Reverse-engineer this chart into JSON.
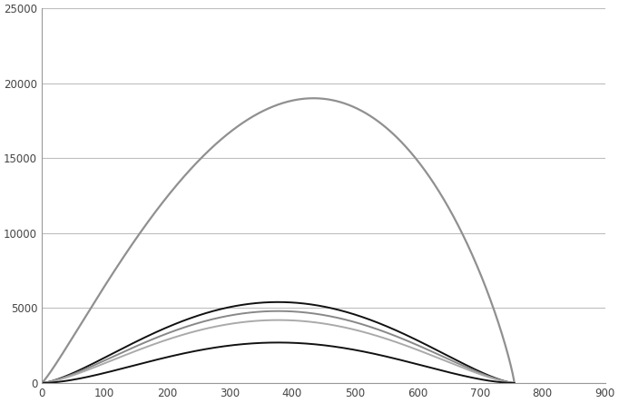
{
  "title": "",
  "xlim": [
    0,
    900
  ],
  "ylim": [
    0,
    25000
  ],
  "xticks": [
    0,
    100,
    200,
    300,
    400,
    500,
    600,
    700,
    800,
    900
  ],
  "yticks": [
    0,
    5000,
    10000,
    15000,
    20000,
    25000
  ],
  "background_color": "#ffffff",
  "grid_color": "#bebebe",
  "curves": [
    {
      "peak_x": 570,
      "peak_y": 19000,
      "start_x": 0,
      "end_x": 755,
      "color": "#909090",
      "linewidth": 1.6,
      "alpha_rise": 1.15,
      "alpha_fall": 0.85
    },
    {
      "peak_x": 620,
      "peak_y": 5400,
      "start_x": 0,
      "end_x": 755,
      "color": "#111111",
      "linewidth": 1.4,
      "alpha_rise": 1.5,
      "alpha_fall": 1.5
    },
    {
      "peak_x": 610,
      "peak_y": 4800,
      "start_x": 0,
      "end_x": 755,
      "color": "#888888",
      "linewidth": 1.4,
      "alpha_rise": 1.5,
      "alpha_fall": 1.5
    },
    {
      "peak_x": 600,
      "peak_y": 4200,
      "start_x": 0,
      "end_x": 755,
      "color": "#aaaaaa",
      "linewidth": 1.4,
      "alpha_rise": 1.5,
      "alpha_fall": 1.5
    },
    {
      "peak_x": 650,
      "peak_y": 2700,
      "start_x": 0,
      "end_x": 755,
      "color": "#111111",
      "linewidth": 1.4,
      "alpha_rise": 1.8,
      "alpha_fall": 1.8
    }
  ]
}
